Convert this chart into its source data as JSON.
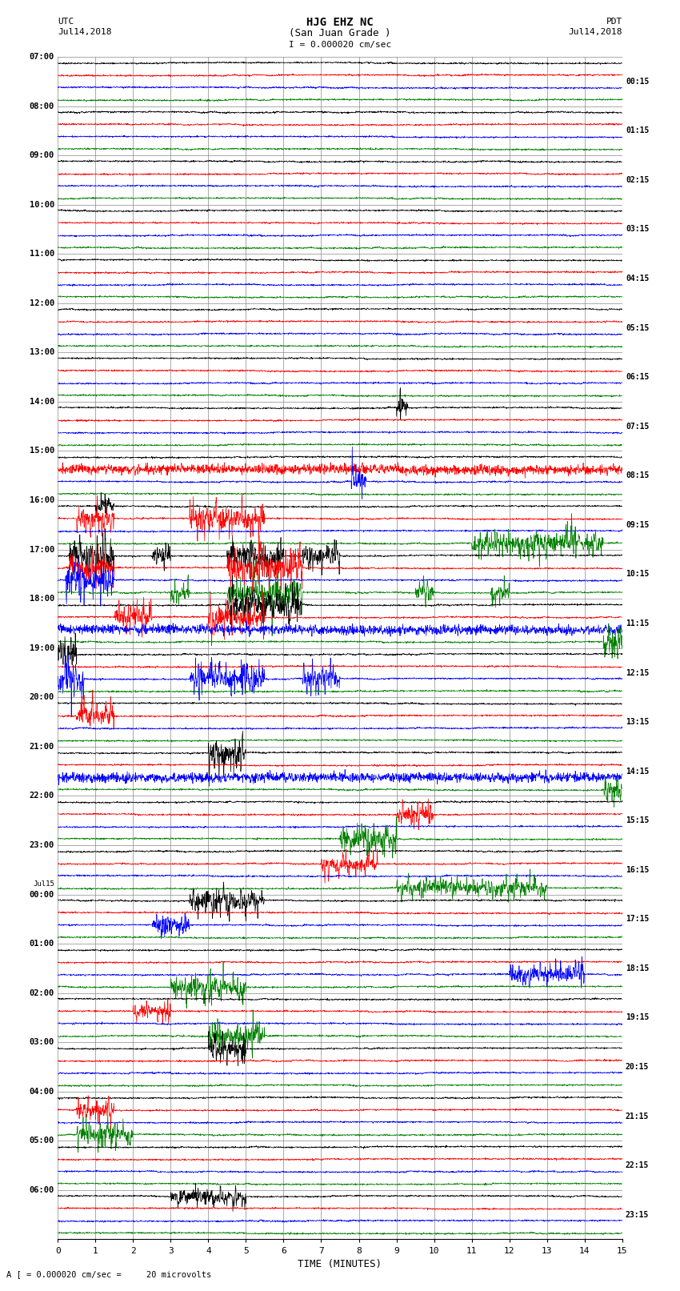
{
  "title_line1": "HJG EHZ NC",
  "title_line2": "(San Juan Grade )",
  "scale_text": "I = 0.000020 cm/sec",
  "footer_text": "A [ = 0.000020 cm/sec =     20 microvolts",
  "utc_label": "UTC",
  "utc_date": "Jul14,2018",
  "pdt_label": "PDT",
  "pdt_date": "Jul14,2018",
  "xlabel": "TIME (MINUTES)",
  "bg_color": "#ffffff",
  "trace_colors": [
    "black",
    "red",
    "blue",
    "green"
  ],
  "grid_color": "#aaaaaa",
  "num_hours": 24,
  "traces_per_hour": 4,
  "left_hours": [
    7,
    8,
    9,
    10,
    11,
    12,
    13,
    14,
    15,
    16,
    17,
    18,
    19,
    20,
    21,
    22,
    23,
    0,
    1,
    2,
    3,
    4,
    5,
    6
  ],
  "right_labels": [
    "00:15",
    "01:15",
    "02:15",
    "03:15",
    "04:15",
    "05:15",
    "06:15",
    "07:15",
    "08:15",
    "09:15",
    "10:15",
    "11:15",
    "12:15",
    "13:15",
    "14:15",
    "15:15",
    "16:15",
    "17:15",
    "18:15",
    "19:15",
    "20:15",
    "21:15",
    "22:15",
    "23:15"
  ],
  "xmin": 0,
  "xmax": 15,
  "xticks": [
    0,
    1,
    2,
    3,
    4,
    5,
    6,
    7,
    8,
    9,
    10,
    11,
    12,
    13,
    14,
    15
  ],
  "jul15_hour_index": 17,
  "base_noise_amp": 0.06,
  "spike_amp_scale": 0.35,
  "trace_linewidth": 0.5
}
